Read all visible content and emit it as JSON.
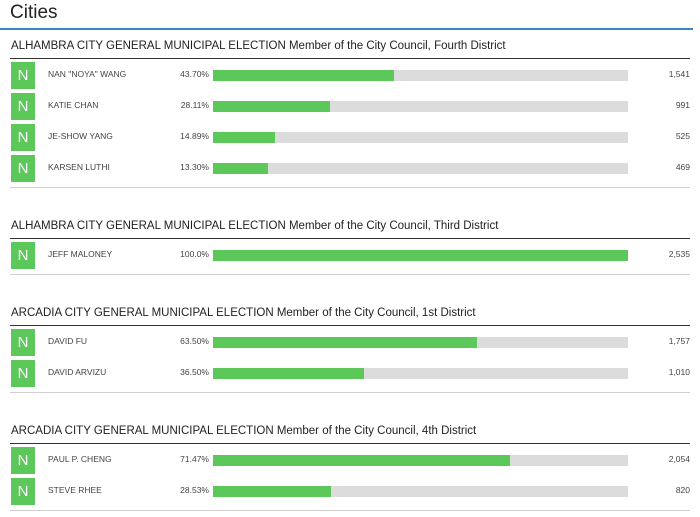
{
  "section": {
    "title": "Cities"
  },
  "races": [
    {
      "title": "ALHAMBRA CITY GENERAL MUNICIPAL ELECTION Member of the City Council, Fourth District",
      "candidates": [
        {
          "badge": "N",
          "name": "NAN \"NOYA\" WANG",
          "pct_label": "43.70%",
          "pct": 43.7,
          "votes": "1,541"
        },
        {
          "badge": "N",
          "name": "KATIE CHAN",
          "pct_label": "28.11%",
          "pct": 28.11,
          "votes": "991"
        },
        {
          "badge": "N",
          "name": "JE-SHOW YANG",
          "pct_label": "14.89%",
          "pct": 14.89,
          "votes": "525"
        },
        {
          "badge": "N",
          "name": "KARSEN LUTHI",
          "pct_label": "13.30%",
          "pct": 13.3,
          "votes": "469"
        }
      ]
    },
    {
      "title": "ALHAMBRA CITY GENERAL MUNICIPAL ELECTION Member of the City Council, Third District",
      "candidates": [
        {
          "badge": "N",
          "name": "JEFF MALONEY",
          "pct_label": "100.0%",
          "pct": 100.0,
          "votes": "2,535"
        }
      ]
    },
    {
      "title": "ARCADIA CITY GENERAL MUNICIPAL ELECTION Member of the City Council, 1st District",
      "candidates": [
        {
          "badge": "N",
          "name": "DAVID FU",
          "pct_label": "63.50%",
          "pct": 63.5,
          "votes": "1,757"
        },
        {
          "badge": "N",
          "name": "DAVID ARVIZU",
          "pct_label": "36.50%",
          "pct": 36.5,
          "votes": "1,010"
        }
      ]
    },
    {
      "title": "ARCADIA CITY GENERAL MUNICIPAL ELECTION Member of the City Council, 4th District",
      "candidates": [
        {
          "badge": "N",
          "name": "PAUL P. CHENG",
          "pct_label": "71.47%",
          "pct": 71.47,
          "votes": "2,054"
        },
        {
          "badge": "N",
          "name": "STEVE RHEE",
          "pct_label": "28.53%",
          "pct": 28.53,
          "votes": "820"
        }
      ]
    }
  ],
  "colors": {
    "accent": "#3a87c8",
    "bar_fill": "#5cc85a",
    "bar_track": "#dcdcdc"
  }
}
